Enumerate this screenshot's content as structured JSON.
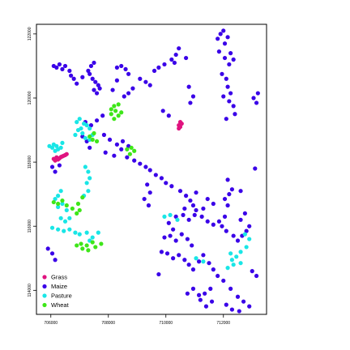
{
  "chart_data": {
    "type": "scatter",
    "title": "",
    "xlabel": "",
    "ylabel": "",
    "xlim": [
      705500,
      713500
    ],
    "ylim": [
      113250,
      122300
    ],
    "grid": false,
    "legend_position": "bottom-left",
    "x_ticks": [
      {
        "value": 706000,
        "label": "706000"
      },
      {
        "value": 708000,
        "label": "708000"
      },
      {
        "value": 710000,
        "label": "710000"
      },
      {
        "value": 712000,
        "label": "712000"
      }
    ],
    "y_ticks": [
      {
        "value": 114000,
        "label": "114000"
      },
      {
        "value": 116000,
        "label": "116000"
      },
      {
        "value": 118000,
        "label": "118000"
      },
      {
        "value": 120000,
        "label": "120000"
      },
      {
        "value": 122000,
        "label": "122000"
      }
    ],
    "legend": [
      {
        "name": "Grass",
        "color": "#e0137f"
      },
      {
        "name": "Maize",
        "color": "#3a00e8"
      },
      {
        "name": "Pasture",
        "color": "#19e6e6"
      },
      {
        "name": "Wheat",
        "color": "#3ee619"
      }
    ],
    "series": [
      {
        "name": "Grass",
        "color": "#e0137f",
        "points": [
          [
            706100,
            118100
          ],
          [
            706200,
            118150
          ],
          [
            706300,
            118120
          ],
          [
            706400,
            118180
          ],
          [
            706500,
            118220
          ],
          [
            706550,
            118250
          ],
          [
            706150,
            118050
          ],
          [
            706250,
            118080
          ],
          [
            706350,
            118160
          ],
          [
            706450,
            118200
          ],
          [
            710450,
            119150
          ],
          [
            710500,
            119250
          ],
          [
            710550,
            119200
          ],
          [
            710450,
            119050
          ],
          [
            710500,
            119100
          ]
        ]
      },
      {
        "name": "Maize",
        "color": "#3a00e8",
        "points": [
          [
            706100,
            121000
          ],
          [
            706200,
            120950
          ],
          [
            706300,
            121050
          ],
          [
            706400,
            120900
          ],
          [
            706500,
            121000
          ],
          [
            706650,
            120850
          ],
          [
            706700,
            120700
          ],
          [
            706800,
            120600
          ],
          [
            706900,
            120450
          ],
          [
            707100,
            120650
          ],
          [
            707300,
            120850
          ],
          [
            707400,
            121000
          ],
          [
            707500,
            121100
          ],
          [
            707350,
            120750
          ],
          [
            707450,
            120600
          ],
          [
            707550,
            120500
          ],
          [
            707650,
            120400
          ],
          [
            707500,
            120250
          ],
          [
            707600,
            120150
          ],
          [
            707700,
            120300
          ],
          [
            708300,
            120950
          ],
          [
            708450,
            121000
          ],
          [
            708600,
            120900
          ],
          [
            708700,
            120750
          ],
          [
            708300,
            120550
          ],
          [
            708150,
            120250
          ],
          [
            708550,
            120050
          ],
          [
            708700,
            120150
          ],
          [
            708850,
            120300
          ],
          [
            709100,
            120600
          ],
          [
            709300,
            120500
          ],
          [
            709450,
            120400
          ],
          [
            709600,
            120850
          ],
          [
            709750,
            120950
          ],
          [
            709950,
            121050
          ],
          [
            710200,
            121200
          ],
          [
            710350,
            121350
          ],
          [
            710450,
            121550
          ],
          [
            710300,
            121100
          ],
          [
            710700,
            121250
          ],
          [
            710800,
            120350
          ],
          [
            710950,
            120050
          ],
          [
            710850,
            119850
          ],
          [
            709900,
            119600
          ],
          [
            710100,
            119450
          ],
          [
            711800,
            121850
          ],
          [
            711900,
            122000
          ],
          [
            712000,
            122100
          ],
          [
            712150,
            121900
          ],
          [
            712050,
            121700
          ],
          [
            711850,
            121450
          ],
          [
            712050,
            121250
          ],
          [
            712200,
            121050
          ],
          [
            712250,
            121400
          ],
          [
            712350,
            121200
          ],
          [
            711950,
            120750
          ],
          [
            712100,
            120600
          ],
          [
            712150,
            120350
          ],
          [
            712250,
            120150
          ],
          [
            712000,
            120050
          ],
          [
            712200,
            119900
          ],
          [
            712350,
            119750
          ],
          [
            712400,
            119500
          ],
          [
            712100,
            119350
          ],
          [
            713050,
            120000
          ],
          [
            713150,
            119850
          ],
          [
            713200,
            120150
          ],
          [
            706050,
            117850
          ],
          [
            706150,
            117700
          ],
          [
            706300,
            117900
          ],
          [
            707200,
            119250
          ],
          [
            707400,
            119150
          ],
          [
            707600,
            119300
          ],
          [
            707800,
            119450
          ],
          [
            707850,
            118850
          ],
          [
            708050,
            118700
          ],
          [
            708300,
            118550
          ],
          [
            708450,
            118400
          ],
          [
            707900,
            118300
          ],
          [
            708200,
            118200
          ],
          [
            708650,
            118150
          ],
          [
            708900,
            118050
          ],
          [
            709100,
            117950
          ],
          [
            709300,
            117850
          ],
          [
            709450,
            117750
          ],
          [
            709650,
            117600
          ],
          [
            709850,
            117500
          ],
          [
            710000,
            117350
          ],
          [
            710200,
            117250
          ],
          [
            710500,
            117100
          ],
          [
            710700,
            116950
          ],
          [
            710850,
            116800
          ],
          [
            710950,
            116650
          ],
          [
            711050,
            116500
          ],
          [
            710350,
            116300
          ],
          [
            710600,
            116350
          ],
          [
            710800,
            116200
          ],
          [
            711000,
            116350
          ],
          [
            711250,
            116300
          ],
          [
            711450,
            116150
          ],
          [
            711650,
            116050
          ],
          [
            711850,
            116150
          ],
          [
            712050,
            116300
          ],
          [
            711950,
            116000
          ],
          [
            712100,
            115850
          ],
          [
            712350,
            115700
          ],
          [
            712500,
            115550
          ],
          [
            712650,
            115700
          ],
          [
            712800,
            115850
          ],
          [
            712900,
            116000
          ],
          [
            712600,
            116200
          ],
          [
            712750,
            116400
          ],
          [
            712050,
            116850
          ],
          [
            712200,
            117000
          ],
          [
            712300,
            117150
          ],
          [
            712150,
            116650
          ],
          [
            711650,
            116700
          ],
          [
            711450,
            116850
          ],
          [
            711300,
            116550
          ],
          [
            709350,
            117300
          ],
          [
            709450,
            117050
          ],
          [
            709250,
            116850
          ],
          [
            709400,
            116650
          ],
          [
            710100,
            116100
          ],
          [
            710250,
            115900
          ],
          [
            710150,
            115700
          ],
          [
            709950,
            115650
          ],
          [
            710350,
            115550
          ],
          [
            710550,
            115750
          ],
          [
            710750,
            115600
          ],
          [
            710900,
            115400
          ],
          [
            710050,
            115150
          ],
          [
            710250,
            115000
          ],
          [
            710450,
            115100
          ],
          [
            710650,
            114950
          ],
          [
            710800,
            114800
          ],
          [
            710950,
            114650
          ],
          [
            711150,
            114900
          ],
          [
            711300,
            115100
          ],
          [
            711500,
            114850
          ],
          [
            711650,
            114650
          ],
          [
            711800,
            114450
          ],
          [
            712000,
            114300
          ],
          [
            712250,
            114050
          ],
          [
            712500,
            113800
          ],
          [
            712700,
            113650
          ],
          [
            712900,
            113500
          ],
          [
            711550,
            114050
          ],
          [
            711350,
            113900
          ],
          [
            711200,
            113700
          ],
          [
            711400,
            113500
          ],
          [
            711600,
            113650
          ],
          [
            710750,
            113900
          ],
          [
            710950,
            114050
          ],
          [
            711150,
            113850
          ],
          [
            712100,
            113550
          ],
          [
            712300,
            113400
          ],
          [
            712550,
            113350
          ],
          [
            713000,
            114600
          ],
          [
            713150,
            114450
          ],
          [
            707100,
            118800
          ],
          [
            707250,
            118650
          ],
          [
            707350,
            118450
          ],
          [
            708500,
            118650
          ],
          [
            708700,
            118500
          ],
          [
            709850,
            115200
          ],
          [
            712150,
            117450
          ],
          [
            711050,
            117050
          ],
          [
            712600,
            117100
          ],
          [
            710650,
            116550
          ],
          [
            705900,
            115300
          ],
          [
            706050,
            115150
          ],
          [
            706150,
            114950
          ],
          [
            709750,
            114500
          ],
          [
            713100,
            117800
          ]
        ]
      },
      {
        "name": "Pasture",
        "color": "#19e6e6",
        "points": [
          [
            706100,
            118550
          ],
          [
            706200,
            118500
          ],
          [
            706350,
            118450
          ],
          [
            706250,
            118400
          ],
          [
            706150,
            118350
          ],
          [
            705950,
            118500
          ],
          [
            706050,
            118450
          ],
          [
            706400,
            118600
          ],
          [
            706900,
            119250
          ],
          [
            707000,
            119350
          ],
          [
            707150,
            119200
          ],
          [
            707050,
            119050
          ],
          [
            706950,
            119000
          ],
          [
            707100,
            118900
          ],
          [
            707250,
            119150
          ],
          [
            707350,
            119050
          ],
          [
            707450,
            118850
          ],
          [
            707200,
            118750
          ],
          [
            707350,
            118700
          ],
          [
            706850,
            118850
          ],
          [
            707200,
            117850
          ],
          [
            707300,
            117700
          ],
          [
            707350,
            117500
          ],
          [
            707250,
            117350
          ],
          [
            707300,
            117100
          ],
          [
            707150,
            116950
          ],
          [
            706350,
            117100
          ],
          [
            706250,
            116950
          ],
          [
            706150,
            116850
          ],
          [
            706250,
            116600
          ],
          [
            706400,
            116700
          ],
          [
            706550,
            116500
          ],
          [
            706650,
            116250
          ],
          [
            706500,
            116150
          ],
          [
            706350,
            116250
          ],
          [
            706050,
            115950
          ],
          [
            706250,
            115900
          ],
          [
            706450,
            115850
          ],
          [
            706650,
            115900
          ],
          [
            706850,
            115800
          ],
          [
            707000,
            115750
          ],
          [
            707250,
            115800
          ],
          [
            707450,
            115650
          ],
          [
            707650,
            115800
          ],
          [
            707350,
            115550
          ],
          [
            709950,
            116300
          ],
          [
            710150,
            116350
          ],
          [
            710400,
            116200
          ],
          [
            711050,
            115000
          ],
          [
            711300,
            114900
          ],
          [
            712250,
            115150
          ],
          [
            712450,
            115050
          ],
          [
            712600,
            115200
          ],
          [
            712800,
            115350
          ],
          [
            712900,
            115600
          ],
          [
            712750,
            115750
          ],
          [
            712600,
            114850
          ],
          [
            712350,
            114800
          ],
          [
            712150,
            114700
          ],
          [
            712300,
            114950
          ]
        ]
      },
      {
        "name": "Wheat",
        "color": "#3ee619",
        "points": [
          [
            708100,
            119650
          ],
          [
            708200,
            119750
          ],
          [
            708350,
            119800
          ],
          [
            708250,
            119600
          ],
          [
            708350,
            119450
          ],
          [
            708200,
            119350
          ],
          [
            708100,
            119500
          ],
          [
            708450,
            119550
          ],
          [
            707350,
            118800
          ],
          [
            707500,
            118900
          ],
          [
            707450,
            118700
          ],
          [
            707600,
            118650
          ],
          [
            708650,
            118400
          ],
          [
            708750,
            118250
          ],
          [
            708800,
            118450
          ],
          [
            708900,
            118350
          ],
          [
            706100,
            116750
          ],
          [
            706250,
            116700
          ],
          [
            706400,
            116800
          ],
          [
            706550,
            116650
          ],
          [
            706750,
            116550
          ],
          [
            706950,
            116700
          ],
          [
            707100,
            116900
          ],
          [
            707000,
            116500
          ],
          [
            706900,
            116400
          ],
          [
            707050,
            115450
          ],
          [
            707250,
            115400
          ],
          [
            707450,
            115500
          ],
          [
            707550,
            115350
          ],
          [
            707750,
            115450
          ],
          [
            707300,
            115250
          ],
          [
            707100,
            115300
          ],
          [
            706900,
            115400
          ]
        ]
      }
    ]
  }
}
